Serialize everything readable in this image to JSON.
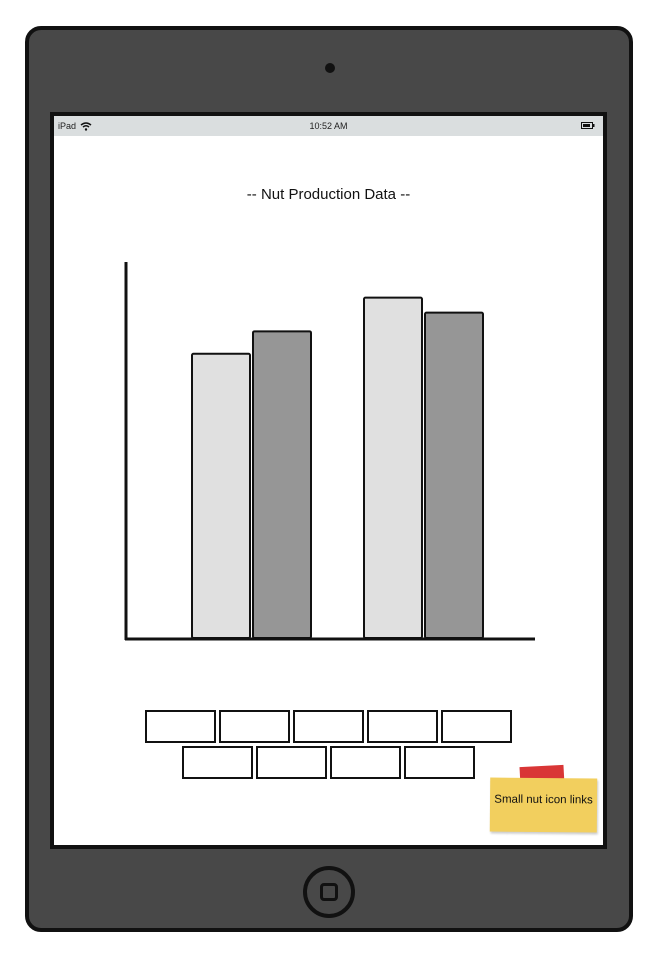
{
  "device": {
    "name": "iPad"
  },
  "status_bar": {
    "carrier": "iPad",
    "time": "10:52 AM",
    "wifi_icon": "wifi-icon",
    "battery_icon": "battery-icon"
  },
  "page": {
    "title": "-- Nut Production Data --"
  },
  "chart_data": {
    "type": "bar",
    "title": "",
    "xlabel": "",
    "ylabel": "",
    "categories": [
      "",
      ""
    ],
    "series": [
      {
        "values": [
          76,
          91
        ],
        "color": "#e0e0e0"
      },
      {
        "values": [
          82,
          87
        ],
        "color": "#969696"
      }
    ],
    "ylim": [
      0,
      100
    ],
    "grid": false
  },
  "nut_buttons": {
    "row1": [
      "",
      "",
      "",
      "",
      ""
    ],
    "row2": [
      "",
      "",
      "",
      ""
    ]
  },
  "sticky_note": {
    "text": "Small nut icon links",
    "color": "#f2cf5e",
    "tape_color": "#d93636"
  },
  "home_button": {
    "icon": "home-button-icon"
  }
}
